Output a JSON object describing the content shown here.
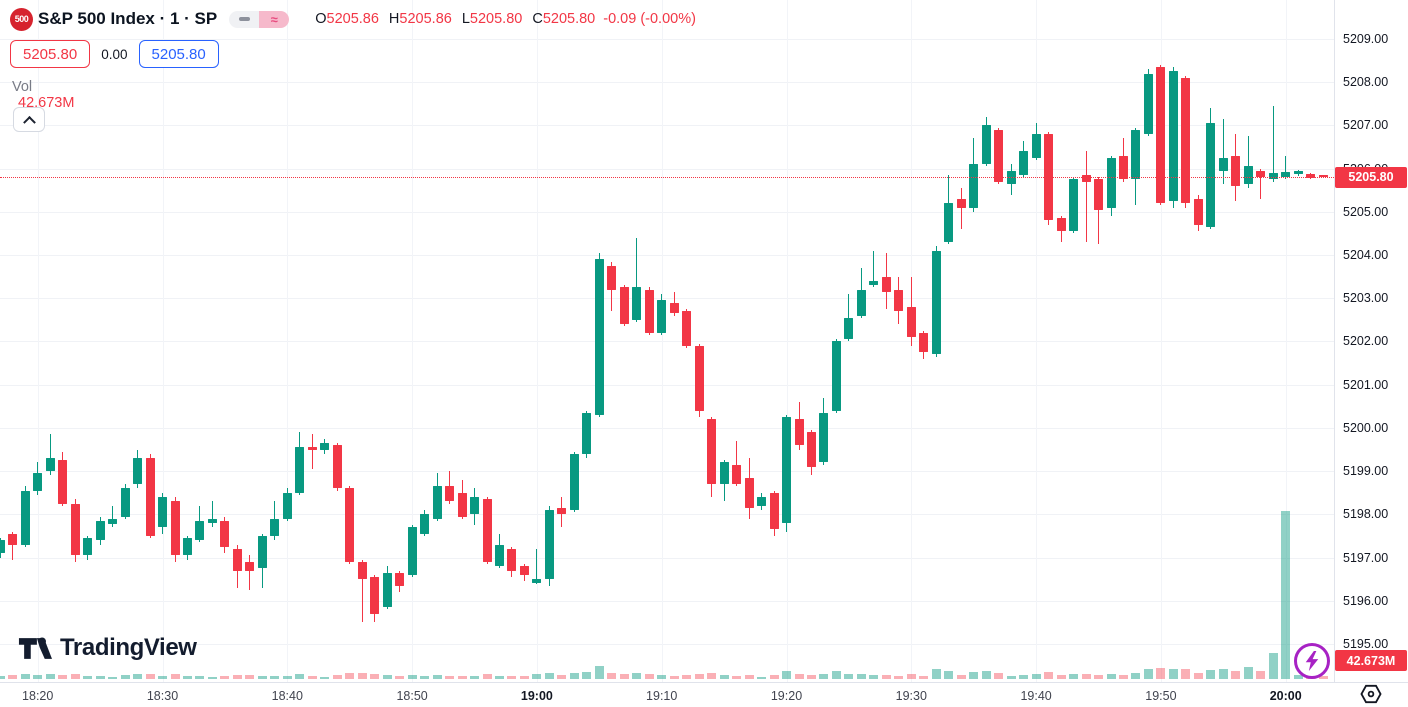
{
  "header": {
    "symbol_badge": "500",
    "title": "S&P 500 Index · 1 · SP",
    "legend_icons": {
      "minimize": "–",
      "approx": "≈"
    },
    "ohlc": {
      "o_label": "O",
      "o": "5205.86",
      "h_label": "H",
      "h": "5205.86",
      "l_label": "L",
      "l": "5205.80",
      "c_label": "C",
      "c": "5205.80",
      "change": "-0.09 (-0.00%)"
    },
    "sell_price": "5205.80",
    "spread": "0.00",
    "buy_price": "5205.80",
    "vol_label": "Vol",
    "vol_value": "42.673M"
  },
  "logo": {
    "wordmark": "TradingView"
  },
  "price_axis": {
    "labels": [
      "5209.00",
      "5208.00",
      "5207.00",
      "5206.00",
      "5205.00",
      "5204.00",
      "5203.00",
      "5202.00",
      "5201.00",
      "5200.00",
      "5199.00",
      "5198.00",
      "5197.00",
      "5196.00",
      "5195.00"
    ],
    "current_price_label": "5205.80",
    "current_volume_label": "42.673M"
  },
  "time_axis": {
    "labels": [
      {
        "label": "18:20",
        "bold": false
      },
      {
        "label": "18:30",
        "bold": false
      },
      {
        "label": "18:40",
        "bold": false
      },
      {
        "label": "18:50",
        "bold": false
      },
      {
        "label": "19:00",
        "bold": true
      },
      {
        "label": "19:10",
        "bold": false
      },
      {
        "label": "19:20",
        "bold": false
      },
      {
        "label": "19:30",
        "bold": false
      },
      {
        "label": "19:40",
        "bold": false
      },
      {
        "label": "19:50",
        "bold": false
      },
      {
        "label": "20:00",
        "bold": true
      }
    ]
  },
  "chart_data": {
    "type": "candlestick",
    "symbol": "S&P 500 Index",
    "interval": "1 minute",
    "y_range": [
      5195.0,
      5209.0
    ],
    "grid": true,
    "price_line": 5205.8,
    "colors": {
      "up": "#089981",
      "down": "#F23645",
      "vol_up": "rgba(8,153,129,0.45)",
      "vol_down": "rgba(242,54,69,0.4)",
      "accent_badge": "#F23645",
      "buy_accent": "#2962FF"
    },
    "columns": [
      "time",
      "open",
      "high",
      "low",
      "close",
      "volume_m"
    ],
    "candles": [
      [
        "18:17",
        5197.1,
        5197.45,
        5197.0,
        5197.4,
        45
      ],
      [
        "18:18",
        5197.55,
        5197.6,
        5196.95,
        5197.3,
        55
      ],
      [
        "18:19",
        5197.3,
        5198.65,
        5197.25,
        5198.55,
        70
      ],
      [
        "18:20",
        5198.55,
        5199.2,
        5198.45,
        5198.95,
        60
      ],
      [
        "18:21",
        5199.0,
        5199.85,
        5198.9,
        5199.3,
        65
      ],
      [
        "18:22",
        5199.25,
        5199.45,
        5198.2,
        5198.25,
        60
      ],
      [
        "18:23",
        5198.25,
        5198.35,
        5196.9,
        5197.05,
        70
      ],
      [
        "18:24",
        5197.05,
        5197.5,
        5196.95,
        5197.45,
        45
      ],
      [
        "18:25",
        5197.4,
        5197.95,
        5197.3,
        5197.85,
        40
      ],
      [
        "18:26",
        5197.78,
        5198.2,
        5197.7,
        5197.9,
        35
      ],
      [
        "18:27",
        5197.95,
        5198.7,
        5197.9,
        5198.6,
        55
      ],
      [
        "18:28",
        5198.7,
        5199.5,
        5198.6,
        5199.3,
        65
      ],
      [
        "18:29",
        5199.3,
        5199.4,
        5197.45,
        5197.5,
        75
      ],
      [
        "18:30",
        5197.7,
        5198.5,
        5197.55,
        5198.4,
        50
      ],
      [
        "18:31",
        5198.3,
        5198.4,
        5196.9,
        5197.05,
        65
      ],
      [
        "18:32",
        5197.05,
        5197.5,
        5196.95,
        5197.45,
        40
      ],
      [
        "18:33",
        5197.4,
        5198.2,
        5197.35,
        5197.85,
        45
      ],
      [
        "18:34",
        5197.8,
        5198.3,
        5197.7,
        5197.9,
        35
      ],
      [
        "18:35",
        5197.85,
        5197.95,
        5197.1,
        5197.25,
        50
      ],
      [
        "18:36",
        5197.2,
        5197.3,
        5196.3,
        5196.7,
        60
      ],
      [
        "18:37",
        5196.9,
        5197.05,
        5196.25,
        5196.7,
        55
      ],
      [
        "18:38",
        5196.75,
        5197.55,
        5196.3,
        5197.5,
        50
      ],
      [
        "18:39",
        5197.5,
        5198.3,
        5197.4,
        5197.9,
        45
      ],
      [
        "18:40",
        5197.9,
        5198.6,
        5197.85,
        5198.5,
        50
      ],
      [
        "18:41",
        5198.5,
        5199.9,
        5198.45,
        5199.55,
        75
      ],
      [
        "18:42",
        5199.55,
        5199.85,
        5199.05,
        5199.5,
        45
      ],
      [
        "18:43",
        5199.5,
        5199.75,
        5199.4,
        5199.65,
        35
      ],
      [
        "18:44",
        5199.6,
        5199.65,
        5198.55,
        5198.6,
        60
      ],
      [
        "18:45",
        5198.6,
        5198.65,
        5196.85,
        5196.9,
        85
      ],
      [
        "18:46",
        5196.9,
        5196.95,
        5195.5,
        5196.5,
        80
      ],
      [
        "18:47",
        5196.55,
        5196.6,
        5195.5,
        5195.7,
        75
      ],
      [
        "18:48",
        5195.85,
        5196.8,
        5195.8,
        5196.65,
        60
      ],
      [
        "18:49",
        5196.65,
        5196.7,
        5196.2,
        5196.35,
        40
      ],
      [
        "18:50",
        5196.6,
        5197.75,
        5196.55,
        5197.7,
        55
      ],
      [
        "18:51",
        5197.55,
        5198.1,
        5197.5,
        5198.0,
        45
      ],
      [
        "18:52",
        5197.9,
        5198.95,
        5197.85,
        5198.65,
        55
      ],
      [
        "18:53",
        5198.65,
        5199.0,
        5198.25,
        5198.3,
        45
      ],
      [
        "18:54",
        5198.5,
        5198.8,
        5197.9,
        5197.95,
        50
      ],
      [
        "18:55",
        5198.0,
        5198.6,
        5197.75,
        5198.4,
        45
      ],
      [
        "18:56",
        5198.35,
        5198.4,
        5196.85,
        5196.9,
        70
      ],
      [
        "18:57",
        5196.8,
        5197.55,
        5196.75,
        5197.3,
        45
      ],
      [
        "18:58",
        5197.2,
        5197.25,
        5196.55,
        5196.7,
        50
      ],
      [
        "18:59",
        5196.8,
        5196.85,
        5196.45,
        5196.6,
        40
      ],
      [
        "19:00",
        5196.42,
        5197.2,
        5196.38,
        5196.5,
        65
      ],
      [
        "19:01",
        5196.5,
        5198.2,
        5196.35,
        5198.1,
        90
      ],
      [
        "19:02",
        5198.15,
        5198.4,
        5197.7,
        5198.0,
        55
      ],
      [
        "19:03",
        5198.1,
        5199.45,
        5198.05,
        5199.4,
        85
      ],
      [
        "19:04",
        5199.4,
        5200.4,
        5199.3,
        5200.35,
        95
      ],
      [
        "19:05",
        5200.3,
        5204.05,
        5200.25,
        5203.9,
        190
      ],
      [
        "19:06",
        5203.75,
        5203.85,
        5202.7,
        5203.2,
        90
      ],
      [
        "19:07",
        5203.25,
        5203.3,
        5202.35,
        5202.4,
        70
      ],
      [
        "19:08",
        5202.5,
        5204.4,
        5202.45,
        5203.25,
        85
      ],
      [
        "19:09",
        5203.2,
        5203.25,
        5202.15,
        5202.2,
        65
      ],
      [
        "19:10",
        5202.2,
        5203.1,
        5202.15,
        5202.95,
        60
      ],
      [
        "19:11",
        5202.9,
        5203.15,
        5202.6,
        5202.65,
        40
      ],
      [
        "19:12",
        5202.7,
        5202.75,
        5201.85,
        5201.9,
        55
      ],
      [
        "19:13",
        5201.9,
        5201.95,
        5200.25,
        5200.4,
        75
      ],
      [
        "19:14",
        5200.2,
        5200.25,
        5198.4,
        5198.7,
        90
      ],
      [
        "19:15",
        5198.7,
        5199.25,
        5198.3,
        5199.2,
        60
      ],
      [
        "19:16",
        5199.15,
        5199.7,
        5198.65,
        5198.7,
        50
      ],
      [
        "19:17",
        5198.85,
        5199.3,
        5197.9,
        5198.15,
        55
      ],
      [
        "19:18",
        5198.2,
        5198.5,
        5198.1,
        5198.4,
        35
      ],
      [
        "19:19",
        5198.5,
        5198.55,
        5197.5,
        5197.65,
        55
      ],
      [
        "19:20",
        5197.8,
        5200.3,
        5197.6,
        5200.25,
        120
      ],
      [
        "19:21",
        5200.2,
        5200.6,
        5199.5,
        5199.6,
        70
      ],
      [
        "19:22",
        5199.9,
        5199.95,
        5198.9,
        5199.1,
        55
      ],
      [
        "19:23",
        5199.2,
        5200.7,
        5199.15,
        5200.35,
        75
      ],
      [
        "19:24",
        5200.4,
        5202.05,
        5200.35,
        5202.0,
        110
      ],
      [
        "19:25",
        5202.05,
        5203.1,
        5202.0,
        5202.55,
        75
      ],
      [
        "19:26",
        5202.6,
        5203.7,
        5202.55,
        5203.2,
        70
      ],
      [
        "19:27",
        5203.3,
        5204.1,
        5203.25,
        5203.4,
        55
      ],
      [
        "19:28",
        5203.5,
        5204.05,
        5202.75,
        5203.15,
        60
      ],
      [
        "19:29",
        5203.2,
        5203.5,
        5202.4,
        5202.7,
        50
      ],
      [
        "19:30",
        5202.8,
        5203.5,
        5201.9,
        5202.1,
        65
      ],
      [
        "19:31",
        5202.2,
        5202.25,
        5201.6,
        5201.75,
        45
      ],
      [
        "19:32",
        5201.7,
        5204.2,
        5201.65,
        5204.1,
        140
      ],
      [
        "19:33",
        5204.3,
        5205.85,
        5204.25,
        5205.2,
        120
      ],
      [
        "19:34",
        5205.3,
        5205.55,
        5204.6,
        5205.1,
        60
      ],
      [
        "19:35",
        5205.1,
        5206.7,
        5205.0,
        5206.1,
        100
      ],
      [
        "19:36",
        5206.1,
        5207.2,
        5206.05,
        5207.0,
        110
      ],
      [
        "19:37",
        5206.9,
        5206.95,
        5205.65,
        5205.7,
        85
      ],
      [
        "19:38",
        5205.65,
        5206.1,
        5205.4,
        5205.95,
        50
      ],
      [
        "19:39",
        5205.85,
        5206.65,
        5205.8,
        5206.4,
        60
      ],
      [
        "19:40",
        5206.25,
        5207.05,
        5206.2,
        5206.8,
        70
      ],
      [
        "19:41",
        5206.8,
        5206.85,
        5204.7,
        5204.8,
        95
      ],
      [
        "19:42",
        5204.85,
        5204.9,
        5204.3,
        5204.55,
        55
      ],
      [
        "19:43",
        5204.55,
        5205.8,
        5204.5,
        5205.75,
        65
      ],
      [
        "19:44",
        5205.85,
        5206.4,
        5204.3,
        5205.7,
        70
      ],
      [
        "19:45",
        5205.75,
        5205.8,
        5204.25,
        5205.05,
        60
      ],
      [
        "19:46",
        5205.1,
        5206.3,
        5204.9,
        5206.25,
        70
      ],
      [
        "19:47",
        5206.3,
        5206.7,
        5205.7,
        5205.75,
        55
      ],
      [
        "19:48",
        5205.75,
        5206.95,
        5205.15,
        5206.9,
        80
      ],
      [
        "19:49",
        5206.8,
        5208.3,
        5206.75,
        5208.2,
        150
      ],
      [
        "19:50",
        5208.35,
        5208.4,
        5205.15,
        5205.2,
        160
      ],
      [
        "19:51",
        5205.25,
        5208.35,
        5205.1,
        5208.25,
        140
      ],
      [
        "19:52",
        5208.1,
        5208.15,
        5205.1,
        5205.2,
        150
      ],
      [
        "19:53",
        5205.3,
        5205.4,
        5204.55,
        5204.7,
        90
      ],
      [
        "19:54",
        5204.65,
        5207.4,
        5204.6,
        5207.05,
        130
      ],
      [
        "19:55",
        5205.95,
        5207.15,
        5205.65,
        5206.25,
        150
      ],
      [
        "19:56",
        5206.3,
        5206.8,
        5205.25,
        5205.6,
        110
      ],
      [
        "19:57",
        5205.65,
        5206.75,
        5205.55,
        5206.05,
        170
      ],
      [
        "19:58",
        5205.95,
        5206.0,
        5205.3,
        5205.8,
        120
      ],
      [
        "19:59",
        5205.75,
        5207.45,
        5205.7,
        5205.9,
        370
      ],
      [
        "20:00",
        5205.8,
        5206.3,
        5205.75,
        5205.92,
        2400
      ],
      [
        "20:01",
        5205.87,
        5205.97,
        5205.84,
        5205.94,
        60
      ],
      [
        "20:02",
        5205.88,
        5205.9,
        5205.75,
        5205.78,
        120
      ],
      [
        "20:03",
        5205.86,
        5205.86,
        5205.8,
        5205.8,
        42.673
      ]
    ]
  }
}
